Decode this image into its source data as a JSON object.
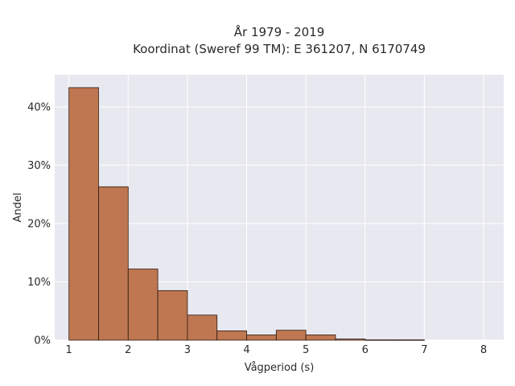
{
  "chart_data": {
    "type": "bar",
    "title_lines": [
      "År 1979 - 2019",
      "Koordinat (Sweref 99 TM): E 361207, N 6170749"
    ],
    "xlabel": "Vågperiod (s)",
    "ylabel": "Andel",
    "xlim": [
      0.76,
      8.34
    ],
    "ylim": [
      0,
      45.5
    ],
    "x_ticks": [
      1,
      2,
      3,
      4,
      5,
      6,
      7,
      8
    ],
    "y_ticks": [
      0,
      10,
      20,
      30,
      40
    ],
    "y_tick_labels": [
      "0%",
      "10%",
      "20%",
      "30%",
      "40%"
    ],
    "bin_width": 0.5,
    "bins": [
      {
        "start": 1.0,
        "value": 43.3
      },
      {
        "start": 1.5,
        "value": 26.3
      },
      {
        "start": 2.0,
        "value": 12.2
      },
      {
        "start": 2.5,
        "value": 8.5
      },
      {
        "start": 3.0,
        "value": 4.3
      },
      {
        "start": 3.5,
        "value": 1.6
      },
      {
        "start": 4.0,
        "value": 0.9
      },
      {
        "start": 4.5,
        "value": 1.7
      },
      {
        "start": 5.0,
        "value": 0.9
      },
      {
        "start": 5.5,
        "value": 0.2
      },
      {
        "start": 6.0,
        "value": 0.05
      },
      {
        "start": 6.5,
        "value": 0.05
      }
    ],
    "grid": true,
    "colors": {
      "bar": "#b96a3f",
      "bar_edge": "#2b1a12",
      "plot_background": "#e8e8f0",
      "grid": "#ffffff"
    }
  }
}
